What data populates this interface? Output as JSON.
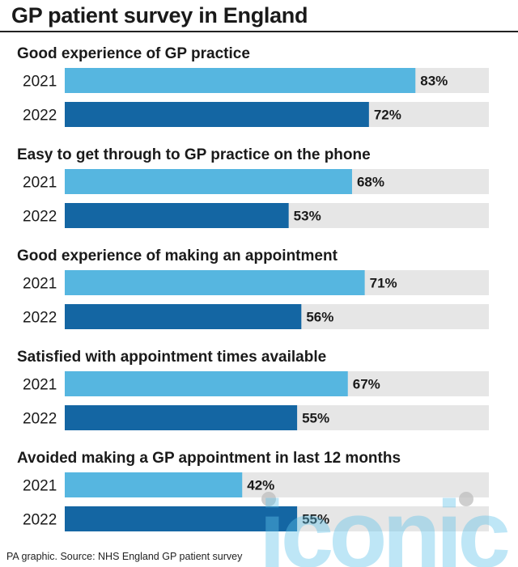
{
  "title": "GP patient survey in England",
  "source": "PA graphic. Source: NHS England GP patient survey",
  "watermark": "iconic",
  "colors": {
    "series_2021": "#56b6e0",
    "series_2022": "#1466a3",
    "track": "#e6e6e6"
  },
  "chart_data": {
    "type": "bar",
    "orientation": "horizontal",
    "title": "GP patient survey in England",
    "xlim": [
      0,
      100
    ],
    "unit": "%",
    "groups": [
      {
        "label": "Good experience of GP practice",
        "bars": [
          {
            "year": "2021",
            "value": 83,
            "label": "83%"
          },
          {
            "year": "2022",
            "value": 72,
            "label": "72%"
          }
        ]
      },
      {
        "label": "Easy to get through to GP practice on the phone",
        "bars": [
          {
            "year": "2021",
            "value": 68,
            "label": "68%"
          },
          {
            "year": "2022",
            "value": 53,
            "label": "53%"
          }
        ]
      },
      {
        "label": "Good experience of making an appointment",
        "bars": [
          {
            "year": "2021",
            "value": 71,
            "label": "71%"
          },
          {
            "year": "2022",
            "value": 56,
            "label": "56%"
          }
        ]
      },
      {
        "label": "Satisfied with appointment times available",
        "bars": [
          {
            "year": "2021",
            "value": 67,
            "label": "67%"
          },
          {
            "year": "2022",
            "value": 55,
            "label": "55%"
          }
        ]
      },
      {
        "label": "Avoided making a GP appointment in last 12 months",
        "bars": [
          {
            "year": "2021",
            "value": 42,
            "label": "42%"
          },
          {
            "year": "2022",
            "value": 55,
            "label": "55%"
          }
        ]
      }
    ]
  }
}
